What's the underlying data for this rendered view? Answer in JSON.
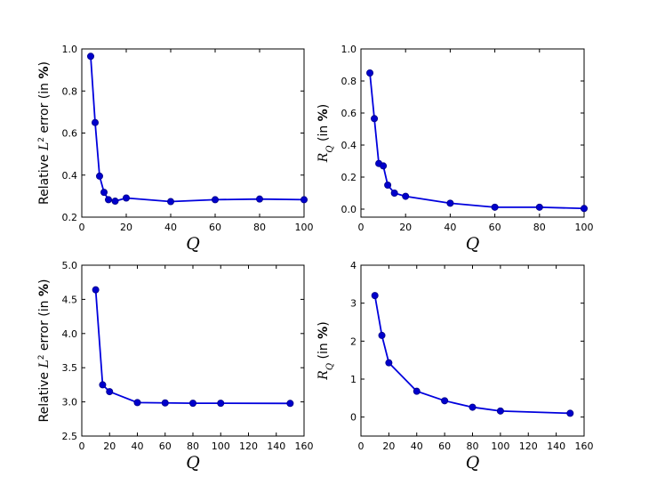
{
  "chart_data": [
    {
      "type": "line",
      "xlabel": "Q",
      "ylabel": {
        "pre": "Relative ",
        "var": "L",
        "sup": "2",
        "post": " error (in ",
        "bold": "%",
        "end": ")"
      },
      "xlim": [
        0,
        100
      ],
      "ylim": [
        0.2,
        1.0
      ],
      "xticks": [
        0,
        20,
        40,
        60,
        80,
        100
      ],
      "yticks": [
        "0.2",
        "0.4",
        "0.6",
        "0.8",
        "1.0"
      ],
      "x": [
        4,
        6,
        8,
        10,
        12,
        15,
        20,
        40,
        60,
        80,
        100
      ],
      "y": [
        0.965,
        0.65,
        0.395,
        0.318,
        0.283,
        0.276,
        0.291,
        0.274,
        0.283,
        0.286,
        0.283
      ]
    },
    {
      "type": "line",
      "xlabel": "Q",
      "ylabel": {
        "var": "R",
        "sub": "Q",
        "post": " (in ",
        "bold": "%",
        "end": ")"
      },
      "xlim": [
        0,
        100
      ],
      "ylim": [
        -0.05,
        1.0
      ],
      "xticks": [
        0,
        20,
        40,
        60,
        80,
        100
      ],
      "yticks": [
        "0.0",
        "0.2",
        "0.4",
        "0.6",
        "0.8",
        "1.0"
      ],
      "x": [
        4,
        6,
        8,
        10,
        12,
        15,
        20,
        40,
        60,
        80,
        100
      ],
      "y": [
        0.85,
        0.565,
        0.285,
        0.27,
        0.15,
        0.1,
        0.08,
        0.037,
        0.012,
        0.012,
        0.004
      ]
    },
    {
      "type": "line",
      "xlabel": "Q",
      "ylabel": {
        "pre": "Relative ",
        "var": "L",
        "sup": "2",
        "post": " error (in ",
        "bold": "%",
        "end": ")"
      },
      "xlim": [
        0,
        160
      ],
      "ylim": [
        2.5,
        5.0
      ],
      "xticks": [
        0,
        20,
        40,
        60,
        80,
        100,
        120,
        140,
        160
      ],
      "yticks": [
        "2.5",
        "3.0",
        "3.5",
        "4.0",
        "4.5",
        "5.0"
      ],
      "x": [
        10,
        15,
        20,
        40,
        60,
        80,
        100,
        150
      ],
      "y": [
        4.64,
        3.25,
        3.15,
        2.99,
        2.985,
        2.98,
        2.98,
        2.978
      ]
    },
    {
      "type": "line",
      "xlabel": "Q",
      "ylabel": {
        "var": "R",
        "sub": "Q",
        "post": " (in ",
        "bold": "%",
        "end": ")"
      },
      "xlim": [
        0,
        160
      ],
      "ylim": [
        -0.5,
        4.0
      ],
      "xticks": [
        0,
        20,
        40,
        60,
        80,
        100,
        120,
        140,
        160
      ],
      "yticks": [
        "0",
        "1",
        "2",
        "3",
        "4"
      ],
      "x": [
        10,
        15,
        20,
        40,
        60,
        80,
        100,
        150
      ],
      "y": [
        3.2,
        2.15,
        1.43,
        0.68,
        0.43,
        0.26,
        0.16,
        0.1
      ]
    }
  ]
}
